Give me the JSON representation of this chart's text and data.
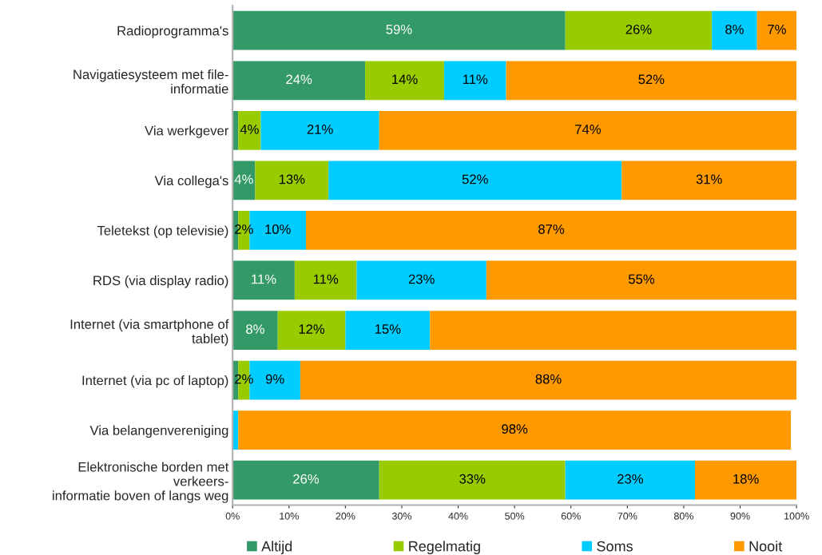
{
  "chart_data": {
    "type": "bar",
    "orientation": "horizontal",
    "stacked": true,
    "categories": [
      "Radioprogramma's",
      "Navigatiesysteem met file-\ninformatie",
      "Via werkgever",
      "Via collega's",
      "Teletekst (op televisie)",
      "RDS (via display radio)",
      "Internet (via smartphone of\ntablet)",
      "Internet (via pc of laptop)",
      "Via belangenvereniging",
      "Elektronische borden met\nverkeers-\ninformatie boven of langs weg"
    ],
    "series": [
      {
        "name": "Altijd",
        "color": "#339966",
        "values": [
          59,
          23.5,
          1,
          4,
          1,
          11,
          8,
          1,
          0,
          26
        ],
        "value_labels": [
          "59%",
          "24%",
          null,
          "4%",
          null,
          "11%",
          "8%",
          null,
          null,
          "26%"
        ]
      },
      {
        "name": "Regelmatig",
        "color": "#99cc00",
        "values": [
          26,
          14,
          4,
          13,
          2,
          11,
          12,
          2,
          0,
          33
        ],
        "value_labels": [
          "26%",
          "14%",
          "4%",
          "13%",
          "2%",
          "11%",
          "12%",
          "2%",
          null,
          "33%"
        ]
      },
      {
        "name": "Soms",
        "color": "#00ccff",
        "values": [
          8,
          11,
          21,
          52,
          10,
          23,
          15,
          9,
          1,
          23
        ],
        "value_labels": [
          "8%",
          "11%",
          "21%",
          "52%",
          "10%",
          "23%",
          "15%",
          "9%",
          null,
          "23%"
        ]
      },
      {
        "name": "Nooit",
        "color": "#ff9900",
        "values": [
          7,
          51.5,
          74,
          31,
          87,
          55,
          65,
          88,
          98,
          18
        ],
        "value_labels": [
          "7%",
          "52%",
          "74%",
          "31%",
          "87%",
          "55%",
          null,
          "88%",
          "98%",
          "18%"
        ]
      }
    ],
    "xlim": [
      0,
      100
    ],
    "xticks": [
      {
        "value": 0,
        "label": "0%"
      },
      {
        "value": 10,
        "label": "10%"
      },
      {
        "value": 20,
        "label": "20%"
      },
      {
        "value": 30,
        "label": "30%"
      },
      {
        "value": 40,
        "label": "40%"
      },
      {
        "value": 50,
        "label": "50%"
      },
      {
        "value": 60,
        "label": "60%"
      },
      {
        "value": 70,
        "label": "70%"
      },
      {
        "value": 80,
        "label": "80%"
      },
      {
        "value": 90,
        "label": "90%"
      },
      {
        "value": 100,
        "label": "100%"
      }
    ],
    "grid": false,
    "legend": "bottom"
  }
}
